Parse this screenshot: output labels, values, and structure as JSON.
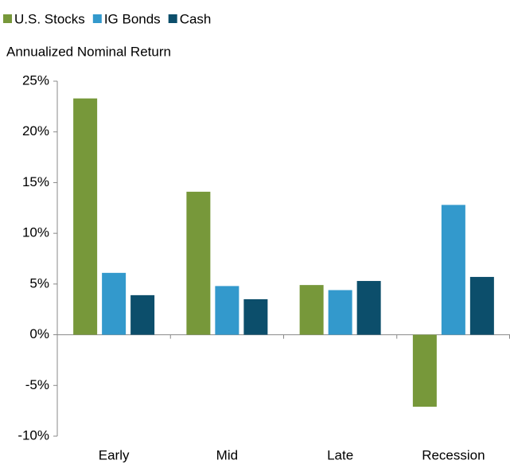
{
  "chart_data": {
    "type": "bar",
    "y_label": "Annualized Nominal Return",
    "categories": [
      "Early",
      "Mid",
      "Late",
      "Recession"
    ],
    "series": [
      {
        "name": "U.S. Stocks",
        "color": "#77983a",
        "values": [
          23.3,
          14.1,
          4.9,
          -7.1
        ]
      },
      {
        "name": "IG Bonds",
        "color": "#3399cc",
        "values": [
          6.1,
          4.8,
          4.4,
          12.8
        ]
      },
      {
        "name": "Cash",
        "color": "#0c4e6b",
        "values": [
          3.9,
          3.5,
          5.3,
          5.7
        ]
      }
    ],
    "ylim": [
      -10,
      25
    ],
    "yticks": [
      {
        "value": -10,
        "label": "-10%"
      },
      {
        "value": -5,
        "label": "-5%"
      },
      {
        "value": 0,
        "label": "0%"
      },
      {
        "value": 5,
        "label": "5%"
      },
      {
        "value": 10,
        "label": "10%"
      },
      {
        "value": 15,
        "label": "15%"
      },
      {
        "value": 20,
        "label": "20%"
      },
      {
        "value": 25,
        "label": "25%"
      }
    ],
    "legend": "top-left"
  }
}
